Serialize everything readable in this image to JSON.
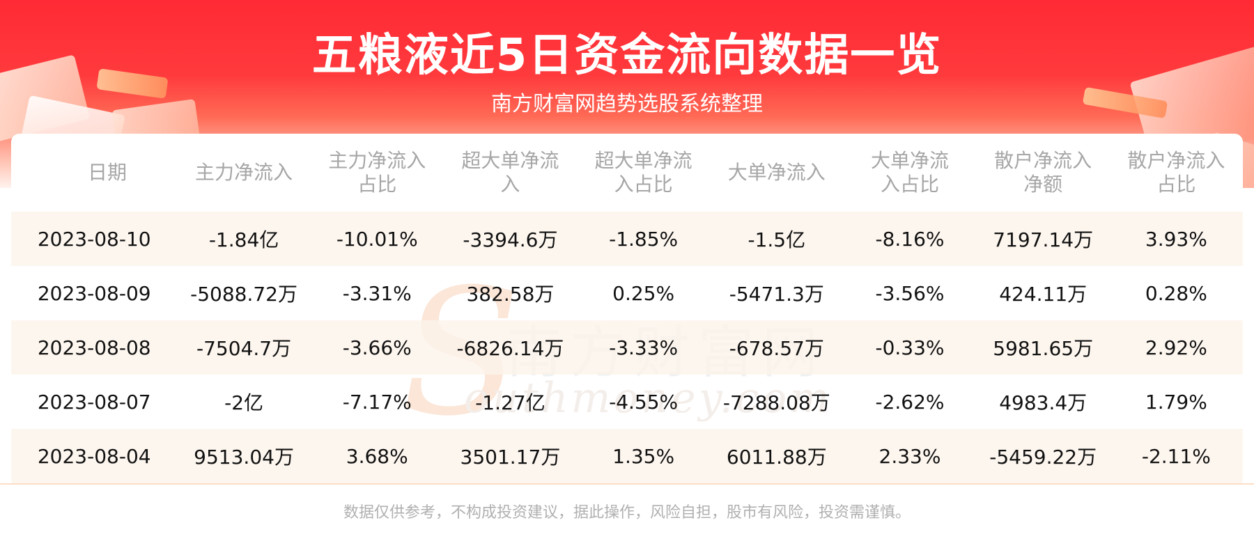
{
  "header": {
    "title": "五粮液近5日资金流向数据一览",
    "subtitle": "南方财富网趋势选股系统整理"
  },
  "watermark": {
    "letter": "S",
    "cn": "南方财富网",
    "en": "outhmoney.com"
  },
  "table": {
    "columns": [
      "日期",
      "主力净流入",
      "主力净流入占比",
      "超大单净流入",
      "超大单净流入占比",
      "大单净流入",
      "大单净流入占比",
      "散户净流入净额",
      "散户净流入占比"
    ],
    "rows": [
      [
        "2023-08-10",
        "-1.84亿",
        "-10.01%",
        "-3394.6万",
        "-1.85%",
        "-1.5亿",
        "-8.16%",
        "7197.14万",
        "3.93%"
      ],
      [
        "2023-08-09",
        "-5088.72万",
        "-3.31%",
        "382.58万",
        "0.25%",
        "-5471.3万",
        "-3.56%",
        "424.11万",
        "0.28%"
      ],
      [
        "2023-08-08",
        "-7504.7万",
        "-3.66%",
        "-6826.14万",
        "-3.33%",
        "-678.57万",
        "-0.33%",
        "5981.65万",
        "2.92%"
      ],
      [
        "2023-08-07",
        "-2亿",
        "-7.17%",
        "-1.27亿",
        "-4.55%",
        "-7288.08万",
        "-2.62%",
        "4983.4万",
        "1.79%"
      ],
      [
        "2023-08-04",
        "9513.04万",
        "3.68%",
        "3501.17万",
        "1.35%",
        "6011.88万",
        "2.33%",
        "-5459.22万",
        "-2.11%"
      ]
    ]
  },
  "footer": {
    "disclaimer": "数据仅供参考，不构成投资建议，据此操作，风险自担，股市有风险，投资需谨慎。"
  }
}
